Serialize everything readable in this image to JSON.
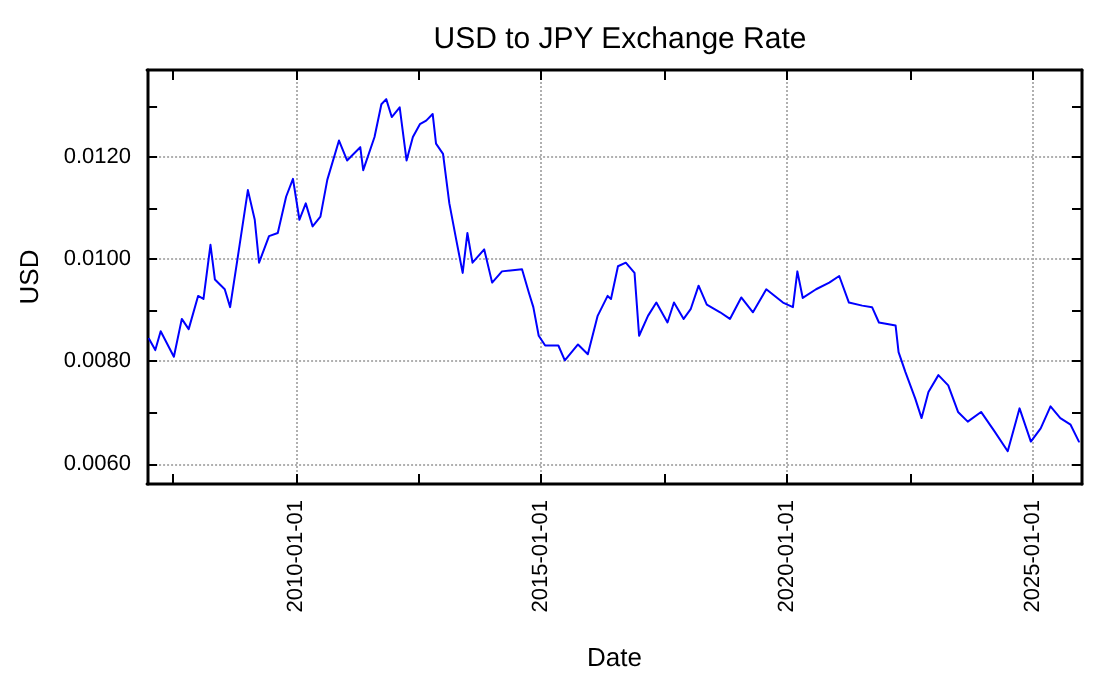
{
  "chart_data": {
    "type": "line",
    "title": "USD to JPY Exchange Rate",
    "xlabel": "Date",
    "ylabel": "USD",
    "x": [
      "2007-01-08",
      "2007-02-24",
      "2007-04-05",
      "2007-07-12",
      "2007-09-09",
      "2007-10-30",
      "2008-01-08",
      "2008-02-17",
      "2008-04-09",
      "2008-05-12",
      "2008-07-24",
      "2008-09-02",
      "2008-10-30",
      "2009-01-12",
      "2009-03-04",
      "2009-04-05",
      "2009-06-18",
      "2009-08-22",
      "2009-10-23",
      "2009-12-13",
      "2010-01-30",
      "2010-03-18",
      "2010-05-08",
      "2010-07-05",
      "2010-08-25",
      "2010-11-20",
      "2011-01-19",
      "2011-04-27",
      "2011-05-19",
      "2011-08-11",
      "2011-10-01",
      "2011-11-06",
      "2011-12-17",
      "2012-02-14",
      "2012-04-05",
      "2012-05-22",
      "2012-07-13",
      "2012-08-29",
      "2012-10-16",
      "2012-11-10",
      "2013-01-01",
      "2013-02-17",
      "2013-04-09",
      "2013-05-27",
      "2013-07-01",
      "2013-08-08",
      "2013-11-03",
      "2014-01-01",
      "2014-03-15",
      "2014-08-11",
      "2014-10-01",
      "2014-11-03",
      "2014-12-13",
      "2015-01-30",
      "2015-05-08",
      "2015-06-25",
      "2015-10-01",
      "2015-12-13",
      "2016-02-24",
      "2016-05-08",
      "2016-06-02",
      "2016-07-24",
      "2016-09-20",
      "2016-11-24",
      "2016-12-28",
      "2017-03-04",
      "2017-05-05",
      "2017-07-27",
      "2017-09-13",
      "2017-11-24",
      "2018-01-15",
      "2018-03-15",
      "2018-05-15",
      "2018-08-22",
      "2018-11-03",
      "2019-01-26",
      "2019-04-23",
      "2019-07-31",
      "2019-12-02",
      "2020-02-14",
      "2020-03-18",
      "2020-04-27",
      "2020-08-04",
      "2020-11-10",
      "2021-01-23",
      "2021-04-05",
      "2021-07-13",
      "2021-09-24",
      "2021-11-14",
      "2022-03-18",
      "2022-04-09",
      "2022-05-30",
      "2022-08-11",
      "2022-09-27",
      "2022-11-17",
      "2023-01-30",
      "2023-04-13",
      "2023-06-25",
      "2023-09-05",
      "2023-12-13",
      "2024-03-22",
      "2024-06-28",
      "2024-09-24",
      "2024-12-17",
      "2025-02-28",
      "2025-05-12",
      "2025-07-24",
      "2025-10-08",
      "2025-12-09"
    ],
    "series": [
      {
        "color": "#0000ff",
        "values": [
          0.00844,
          0.00822,
          0.00859,
          0.00809,
          0.00883,
          0.00863,
          0.00928,
          0.00922,
          0.01028,
          0.0096,
          0.00941,
          0.00906,
          0.01006,
          0.01135,
          0.01077,
          0.00993,
          0.01045,
          0.01051,
          0.01122,
          0.01157,
          0.01077,
          0.01109,
          0.01064,
          0.01083,
          0.01155,
          0.01232,
          0.01193,
          0.01219,
          0.01174,
          0.01239,
          0.01303,
          0.01313,
          0.01278,
          0.01297,
          0.01193,
          0.01239,
          0.01264,
          0.01271,
          0.01284,
          0.01226,
          0.01206,
          0.01109,
          0.01038,
          0.00973,
          0.01051,
          0.00993,
          0.01019,
          0.00954,
          0.00976,
          0.0098,
          0.00934,
          0.00906,
          0.0085,
          0.00831,
          0.00831,
          0.00802,
          0.00833,
          0.00814,
          0.00889,
          0.00928,
          0.00922,
          0.00986,
          0.00993,
          0.00973,
          0.0085,
          0.00889,
          0.00915,
          0.00876,
          0.00915,
          0.00883,
          0.00902,
          0.00948,
          0.00911,
          0.00896,
          0.00883,
          0.00925,
          0.00896,
          0.00941,
          0.00915,
          0.00906,
          0.00976,
          0.00924,
          0.00941,
          0.00954,
          0.00967,
          0.00915,
          0.00909,
          0.00906,
          0.00876,
          0.0087,
          0.00818,
          0.00779,
          0.00727,
          0.00689,
          0.0074,
          0.00773,
          0.00753,
          0.00701,
          0.00682,
          0.00701,
          0.00663,
          0.00624,
          0.00708,
          0.00643,
          0.00669,
          0.00712,
          0.00689,
          0.00676,
          0.00643
        ]
      }
    ],
    "xlim": [
      "2006-12-25",
      "2026-01-01"
    ],
    "xticks": [
      {
        "value": "2007-07-02",
        "label": null
      },
      "2010-01-01",
      {
        "value": "2012-07-02",
        "label": null
      },
      "2015-01-01",
      {
        "value": "2017-07-02",
        "label": null
      },
      "2020-01-01",
      {
        "value": "2022-07-02",
        "label": null
      },
      "2025-01-01"
    ],
    "ylim": [
      0.0056,
      0.0137
    ],
    "yticks": [
      {
        "value": 0.006,
        "label": "0.0060"
      },
      {
        "value": 0.007,
        "label": null
      },
      {
        "value": 0.008,
        "label": "0.0080"
      },
      {
        "value": 0.009,
        "label": null
      },
      {
        "value": 0.01,
        "label": "0.0100"
      },
      {
        "value": 0.011,
        "label": null
      },
      {
        "value": 0.012,
        "label": "0.0120"
      },
      {
        "value": 0.013,
        "label": null
      }
    ],
    "grid": true,
    "marker": "none",
    "line_style": "solid"
  }
}
